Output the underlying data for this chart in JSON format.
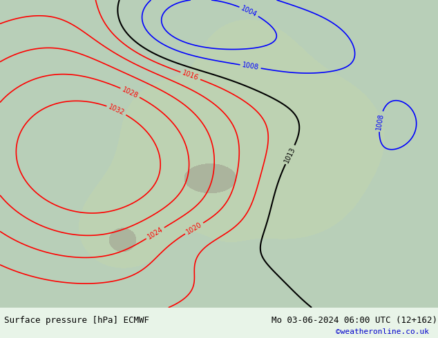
{
  "title_left": "Surface pressure [hPa] ECMWF",
  "title_right": "Mo 03-06-2024 06:00 UTC (12+162)",
  "copyright": "©weatheronline.co.uk",
  "bg_color": "#e8f4e8",
  "land_color": "#c8dfc8",
  "sea_color": "#e8f0f8",
  "fig_width": 6.34,
  "fig_height": 4.9,
  "dpi": 100,
  "bottom_bar_color": "#f0f0f0",
  "title_fontsize": 9,
  "copyright_color": "#0000cc"
}
